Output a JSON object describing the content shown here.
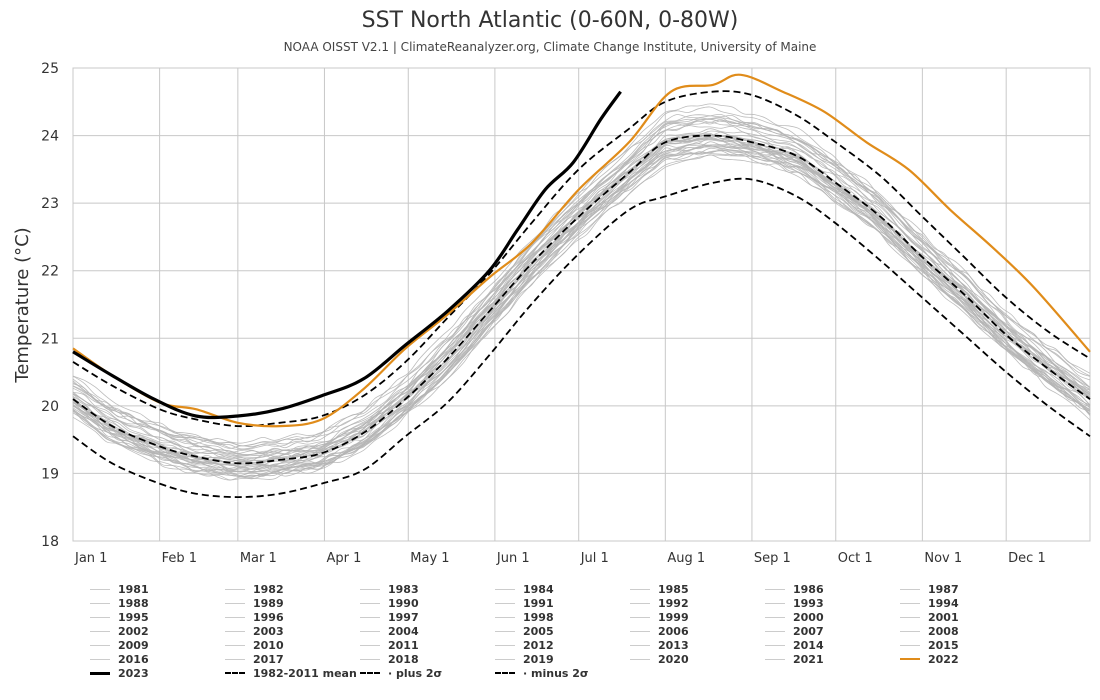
{
  "chart_data": {
    "type": "line",
    "title": "SST North Atlantic (0-60N, 0-80W)",
    "subtitle": "NOAA OISST V2.1 | ClimateReanalyzer.org, Climate Change Institute, University of Maine",
    "xlabel": "",
    "ylabel": "Temperature (°C)",
    "ylim": [
      18,
      25
    ],
    "yticks": [
      18,
      19,
      20,
      21,
      22,
      23,
      24,
      25
    ],
    "xlim_day": [
      1,
      365
    ],
    "month_ticks": [
      "Jan 1",
      "Feb 1",
      "Mar 1",
      "Apr 1",
      "May 1",
      "Jun 1",
      "Jul 1",
      "Aug 1",
      "Sep 1",
      "Oct 1",
      "Nov 1",
      "Dec 1"
    ],
    "month_tick_days": [
      1,
      32,
      60,
      91,
      121,
      152,
      182,
      213,
      244,
      274,
      305,
      335
    ],
    "grid": true,
    "legend_position": "bottom",
    "colors": {
      "historical": "#b5b5b5",
      "year_2023": "#000000",
      "year_2022": "#e08c1a",
      "stats": "#000000",
      "grid": "#c8c8c8"
    },
    "historical_years": [
      "1981",
      "1982",
      "1983",
      "1984",
      "1985",
      "1986",
      "1987",
      "1988",
      "1989",
      "1990",
      "1991",
      "1992",
      "1993",
      "1994",
      "1995",
      "1996",
      "1997",
      "1998",
      "1999",
      "2000",
      "2001",
      "2002",
      "2003",
      "2004",
      "2005",
      "2006",
      "2007",
      "2008",
      "2009",
      "2010",
      "2011",
      "2012",
      "2013",
      "2014",
      "2015",
      "2016",
      "2017",
      "2018",
      "2019",
      "2020",
      "2021"
    ],
    "series": [
      {
        "name": "2023",
        "style": "bold-solid",
        "color": "#000000",
        "x": [
          1,
          15,
          30,
          45,
          60,
          75,
          90,
          105,
          120,
          135,
          150,
          160,
          170,
          180,
          190,
          197
        ],
        "y": [
          20.8,
          20.45,
          20.1,
          19.85,
          19.85,
          19.95,
          20.15,
          20.4,
          20.9,
          21.4,
          22.0,
          22.6,
          23.2,
          23.6,
          24.25,
          24.65
        ]
      },
      {
        "name": "2022",
        "style": "solid",
        "color": "#e08c1a",
        "x": [
          1,
          15,
          32,
          45,
          60,
          75,
          90,
          105,
          120,
          135,
          150,
          165,
          182,
          200,
          215,
          230,
          240,
          255,
          270,
          285,
          300,
          315,
          330,
          345,
          365
        ],
        "y": [
          20.85,
          20.45,
          20.05,
          19.95,
          19.75,
          19.7,
          19.8,
          20.25,
          20.85,
          21.35,
          21.9,
          22.4,
          23.2,
          23.9,
          24.65,
          24.75,
          24.9,
          24.65,
          24.35,
          23.9,
          23.5,
          22.9,
          22.35,
          21.75,
          20.8
        ]
      },
      {
        "name": "1982-2011 mean",
        "style": "dashed",
        "color": "#000000",
        "x": [
          1,
          15,
          32,
          45,
          60,
          75,
          90,
          105,
          120,
          135,
          150,
          165,
          182,
          200,
          213,
          230,
          244,
          260,
          274,
          290,
          305,
          320,
          335,
          350,
          365
        ],
        "y": [
          20.1,
          19.7,
          19.4,
          19.25,
          19.15,
          19.2,
          19.3,
          19.6,
          20.1,
          20.7,
          21.4,
          22.1,
          22.8,
          23.45,
          23.9,
          24.0,
          23.9,
          23.7,
          23.3,
          22.8,
          22.2,
          21.65,
          21.05,
          20.55,
          20.1
        ]
      },
      {
        "name": "plus 2σ",
        "style": "dashed",
        "color": "#000000",
        "x": [
          1,
          15,
          32,
          45,
          60,
          75,
          90,
          105,
          120,
          135,
          150,
          165,
          182,
          200,
          213,
          230,
          244,
          260,
          274,
          290,
          305,
          320,
          335,
          350,
          365
        ],
        "y": [
          20.65,
          20.3,
          19.95,
          19.8,
          19.7,
          19.75,
          19.85,
          20.15,
          20.65,
          21.3,
          21.95,
          22.7,
          23.5,
          24.1,
          24.5,
          24.65,
          24.6,
          24.3,
          23.9,
          23.4,
          22.8,
          22.2,
          21.6,
          21.1,
          20.7
        ]
      },
      {
        "name": "minus 2σ",
        "style": "dashed",
        "color": "#000000",
        "x": [
          1,
          15,
          32,
          45,
          60,
          75,
          90,
          105,
          120,
          135,
          150,
          165,
          182,
          200,
          213,
          230,
          244,
          260,
          274,
          290,
          305,
          320,
          335,
          350,
          365
        ],
        "y": [
          19.55,
          19.15,
          18.85,
          18.7,
          18.65,
          18.7,
          18.85,
          19.05,
          19.55,
          20.05,
          20.75,
          21.5,
          22.25,
          22.9,
          23.1,
          23.3,
          23.35,
          23.1,
          22.7,
          22.15,
          21.6,
          21.05,
          20.5,
          20.0,
          19.55
        ]
      }
    ]
  },
  "legend": {
    "rows": [
      [
        "1981",
        "1982",
        "1983",
        "1984",
        "1985",
        "1986",
        "1987"
      ],
      [
        "1988",
        "1989",
        "1990",
        "1991",
        "1992",
        "1993",
        "1994"
      ],
      [
        "1995",
        "1996",
        "1997",
        "1998",
        "1999",
        "2000",
        "2001"
      ],
      [
        "2002",
        "2003",
        "2004",
        "2005",
        "2006",
        "2007",
        "2008"
      ],
      [
        "2009",
        "2010",
        "2011",
        "2012",
        "2013",
        "2014",
        "2015"
      ],
      [
        "2016",
        "2017",
        "2018",
        "2019",
        "2020",
        "2021",
        "2022"
      ],
      [
        "2023",
        "1982-2011 mean",
        "· plus 2σ",
        "· minus 2σ"
      ]
    ]
  }
}
